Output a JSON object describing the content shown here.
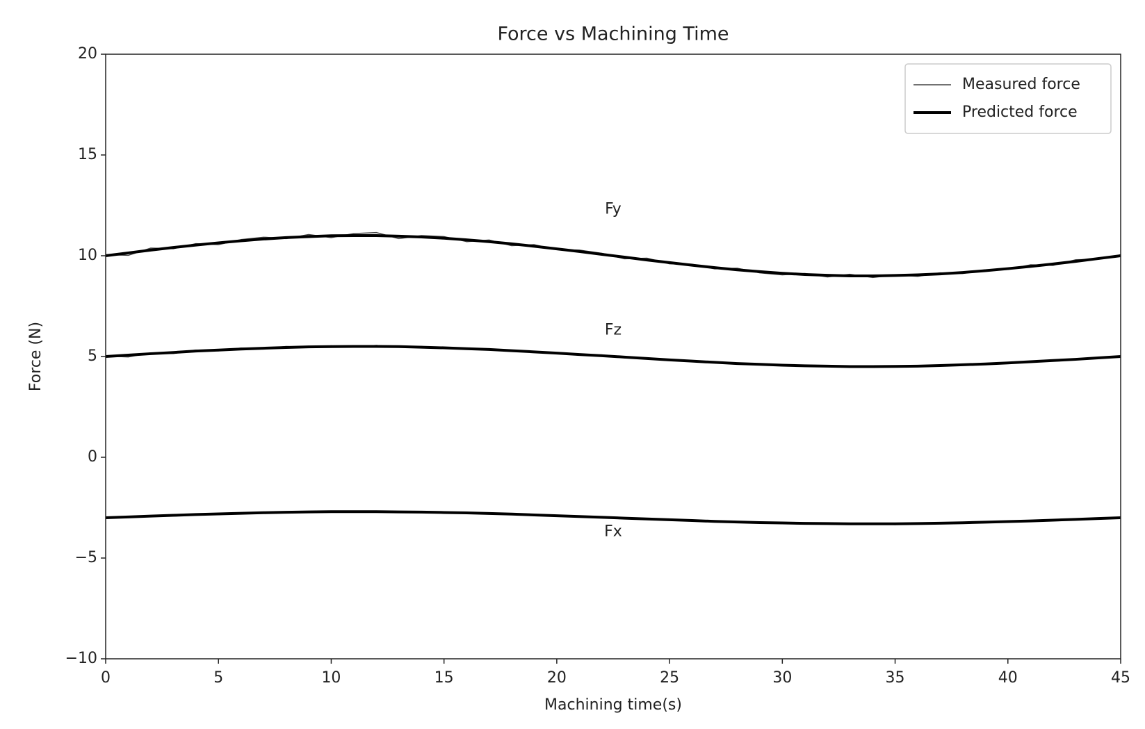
{
  "chart_data": {
    "type": "line",
    "title": "Force vs Machining Time",
    "xlabel": "Machining time(s)",
    "ylabel": "Force (N)",
    "x": [
      0,
      1,
      2,
      3,
      4,
      5,
      6,
      7,
      8,
      9,
      10,
      11,
      12,
      13,
      14,
      15,
      16,
      17,
      18,
      19,
      20,
      21,
      22,
      23,
      24,
      25,
      26,
      27,
      28,
      29,
      30,
      31,
      32,
      33,
      34,
      35,
      36,
      37,
      38,
      39,
      40,
      41,
      42,
      43,
      44,
      45
    ],
    "xlim": [
      0,
      45
    ],
    "xticks": [
      0,
      5,
      10,
      15,
      20,
      25,
      30,
      35,
      40,
      45
    ],
    "ylim": [
      -10,
      20
    ],
    "yticks": [
      {
        "value": -10,
        "label": "−10"
      },
      {
        "value": -5,
        "label": "−5"
      },
      0,
      5,
      10,
      15,
      20
    ],
    "grid": false,
    "legend": "upper right",
    "series": [
      {
        "name": "Measured force",
        "color": "#444444",
        "linewidth": 1.5,
        "values": [
          10.05,
          10.02,
          10.38,
          10.35,
          10.6,
          10.55,
          10.8,
          10.92,
          10.85,
          11.05,
          10.9,
          11.1,
          11.15,
          10.85,
          11.0,
          10.95,
          10.7,
          10.78,
          10.5,
          10.55,
          10.3,
          10.28,
          10.12,
          9.85,
          9.88,
          9.6,
          9.58,
          9.35,
          9.38,
          9.15,
          9.05,
          9.12,
          8.95,
          9.08,
          8.92,
          9.05,
          8.98,
          9.15,
          9.12,
          9.3,
          9.32,
          9.55,
          9.52,
          9.8,
          9.82,
          10.05
        ]
      },
      {
        "name": "Measured force",
        "color": "#444444",
        "linewidth": 1.5,
        "values": [
          5.02,
          4.98,
          5.18,
          5.15,
          5.32,
          5.28,
          5.42,
          5.38,
          5.5,
          5.45,
          5.53,
          5.47,
          5.55,
          5.46,
          5.5,
          5.4,
          5.42,
          5.32,
          5.31,
          5.2,
          5.19,
          5.06,
          5.08,
          4.93,
          4.92,
          4.8,
          4.79,
          4.68,
          4.67,
          4.58,
          4.59,
          4.51,
          4.55,
          4.47,
          4.53,
          4.48,
          4.55,
          4.52,
          4.62,
          4.6,
          4.7,
          4.72,
          4.82,
          4.84,
          4.95,
          5.02
        ]
      },
      {
        "name": "Measured force",
        "color": "#444444",
        "linewidth": 1.5,
        "values": [
          -2.98,
          -2.99,
          -2.89,
          -2.9,
          -2.82,
          -2.85,
          -2.76,
          -2.77,
          -2.7,
          -2.74,
          -2.68,
          -2.72,
          -2.67,
          -2.73,
          -2.7,
          -2.76,
          -2.74,
          -2.81,
          -2.8,
          -2.88,
          -2.87,
          -2.96,
          -2.96,
          -3.04,
          -3.04,
          -3.12,
          -3.12,
          -3.2,
          -3.19,
          -3.26,
          -3.24,
          -3.3,
          -3.27,
          -3.33,
          -3.28,
          -3.34,
          -3.27,
          -3.29,
          -3.23,
          -3.24,
          -3.17,
          -3.18,
          -3.1,
          -3.1,
          -3.02,
          -2.98
        ]
      },
      {
        "name": "Predicted force",
        "color": "#000000",
        "linewidth": 4,
        "values": [
          10.0,
          10.14,
          10.28,
          10.41,
          10.53,
          10.64,
          10.74,
          10.83,
          10.9,
          10.95,
          10.99,
          11.0,
          11.0,
          10.97,
          10.93,
          10.87,
          10.79,
          10.7,
          10.59,
          10.47,
          10.34,
          10.21,
          10.07,
          9.93,
          9.79,
          9.66,
          9.53,
          9.41,
          9.3,
          9.21,
          9.13,
          9.07,
          9.03,
          9.0,
          9.0,
          9.02,
          9.05,
          9.1,
          9.17,
          9.26,
          9.36,
          9.47,
          9.59,
          9.72,
          9.86,
          10.0
        ]
      },
      {
        "name": "Predicted force",
        "color": "#000000",
        "linewidth": 4,
        "values": [
          5.0,
          5.07,
          5.14,
          5.2,
          5.27,
          5.32,
          5.37,
          5.41,
          5.45,
          5.48,
          5.49,
          5.5,
          5.5,
          5.49,
          5.46,
          5.43,
          5.39,
          5.35,
          5.29,
          5.23,
          5.17,
          5.1,
          5.04,
          4.97,
          4.9,
          4.83,
          4.77,
          4.71,
          4.65,
          4.61,
          4.57,
          4.54,
          4.52,
          4.5,
          4.5,
          4.51,
          4.52,
          4.55,
          4.59,
          4.63,
          4.68,
          4.74,
          4.8,
          4.86,
          4.93,
          5.0
        ]
      },
      {
        "name": "Predicted force",
        "color": "#000000",
        "linewidth": 4,
        "values": [
          -3.0,
          -2.96,
          -2.92,
          -2.88,
          -2.84,
          -2.81,
          -2.78,
          -2.75,
          -2.73,
          -2.71,
          -2.7,
          -2.7,
          -2.7,
          -2.71,
          -2.72,
          -2.74,
          -2.76,
          -2.79,
          -2.82,
          -2.86,
          -2.9,
          -2.94,
          -2.98,
          -3.02,
          -3.06,
          -3.1,
          -3.14,
          -3.18,
          -3.21,
          -3.24,
          -3.26,
          -3.28,
          -3.29,
          -3.3,
          -3.3,
          -3.3,
          -3.29,
          -3.27,
          -3.25,
          -3.22,
          -3.19,
          -3.16,
          -3.12,
          -3.08,
          -3.04,
          -3.0
        ]
      }
    ],
    "annotations": [
      {
        "text": "Fy",
        "x": 22.5,
        "y": 12.3
      },
      {
        "text": "Fz",
        "x": 22.5,
        "y": 6.3
      },
      {
        "text": "Fx",
        "x": 22.5,
        "y": -3.7
      }
    ]
  }
}
